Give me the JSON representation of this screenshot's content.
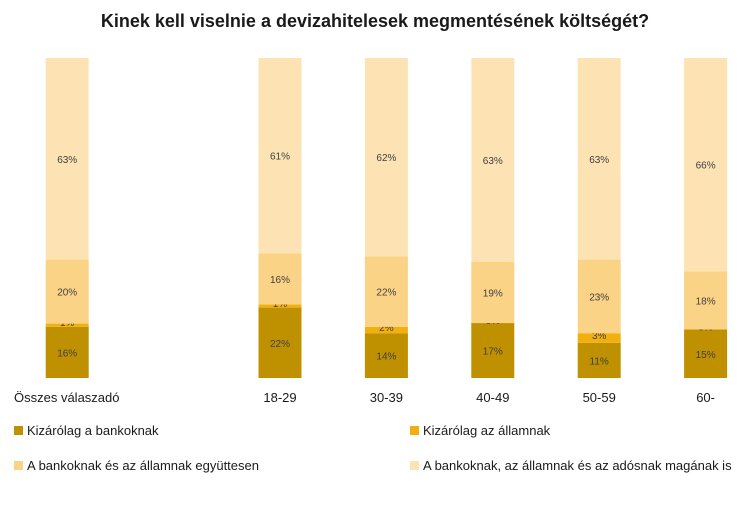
{
  "chart_data": {
    "type": "bar",
    "stacked": true,
    "percent_stacked": true,
    "title": "Kinek kell viselnie a devizahitelesek megmentésének költségét?",
    "categories": [
      "Összes válaszadó",
      "",
      "18-29",
      "30-39",
      "40-49",
      "50-59",
      "60-"
    ],
    "series": [
      {
        "name": "Kizárólag a bankoknak",
        "color": "#bf9000",
        "values": [
          16,
          null,
          22,
          14,
          17,
          11,
          15
        ],
        "labels": [
          "16%",
          "",
          "22%",
          "14%",
          "17%",
          "11%",
          "15%"
        ]
      },
      {
        "name": "Kizárólag az államnak",
        "color": "#f2b00f",
        "values": [
          1,
          null,
          1,
          2,
          0,
          3,
          0
        ],
        "labels": [
          "1%",
          "",
          "1%",
          "2%",
          "0%",
          "3%",
          "0%"
        ]
      },
      {
        "name": "A bankoknak és az államnak együttesen",
        "color": "#fbd386",
        "values": [
          20,
          null,
          16,
          22,
          19,
          23,
          18
        ],
        "labels": [
          "20%",
          "",
          "16%",
          "22%",
          "19%",
          "23%",
          "18%"
        ]
      },
      {
        "name": "A bankoknak, az államnak és az adósnak magának is",
        "color": "#fde3b4",
        "values": [
          63,
          null,
          61,
          62,
          63,
          63,
          66
        ],
        "labels": [
          "63%",
          "",
          "61%",
          "62%",
          "63%",
          "63%",
          "66%"
        ]
      }
    ],
    "ylim": [
      0,
      100
    ],
    "legend": "bottom",
    "grid": false
  }
}
